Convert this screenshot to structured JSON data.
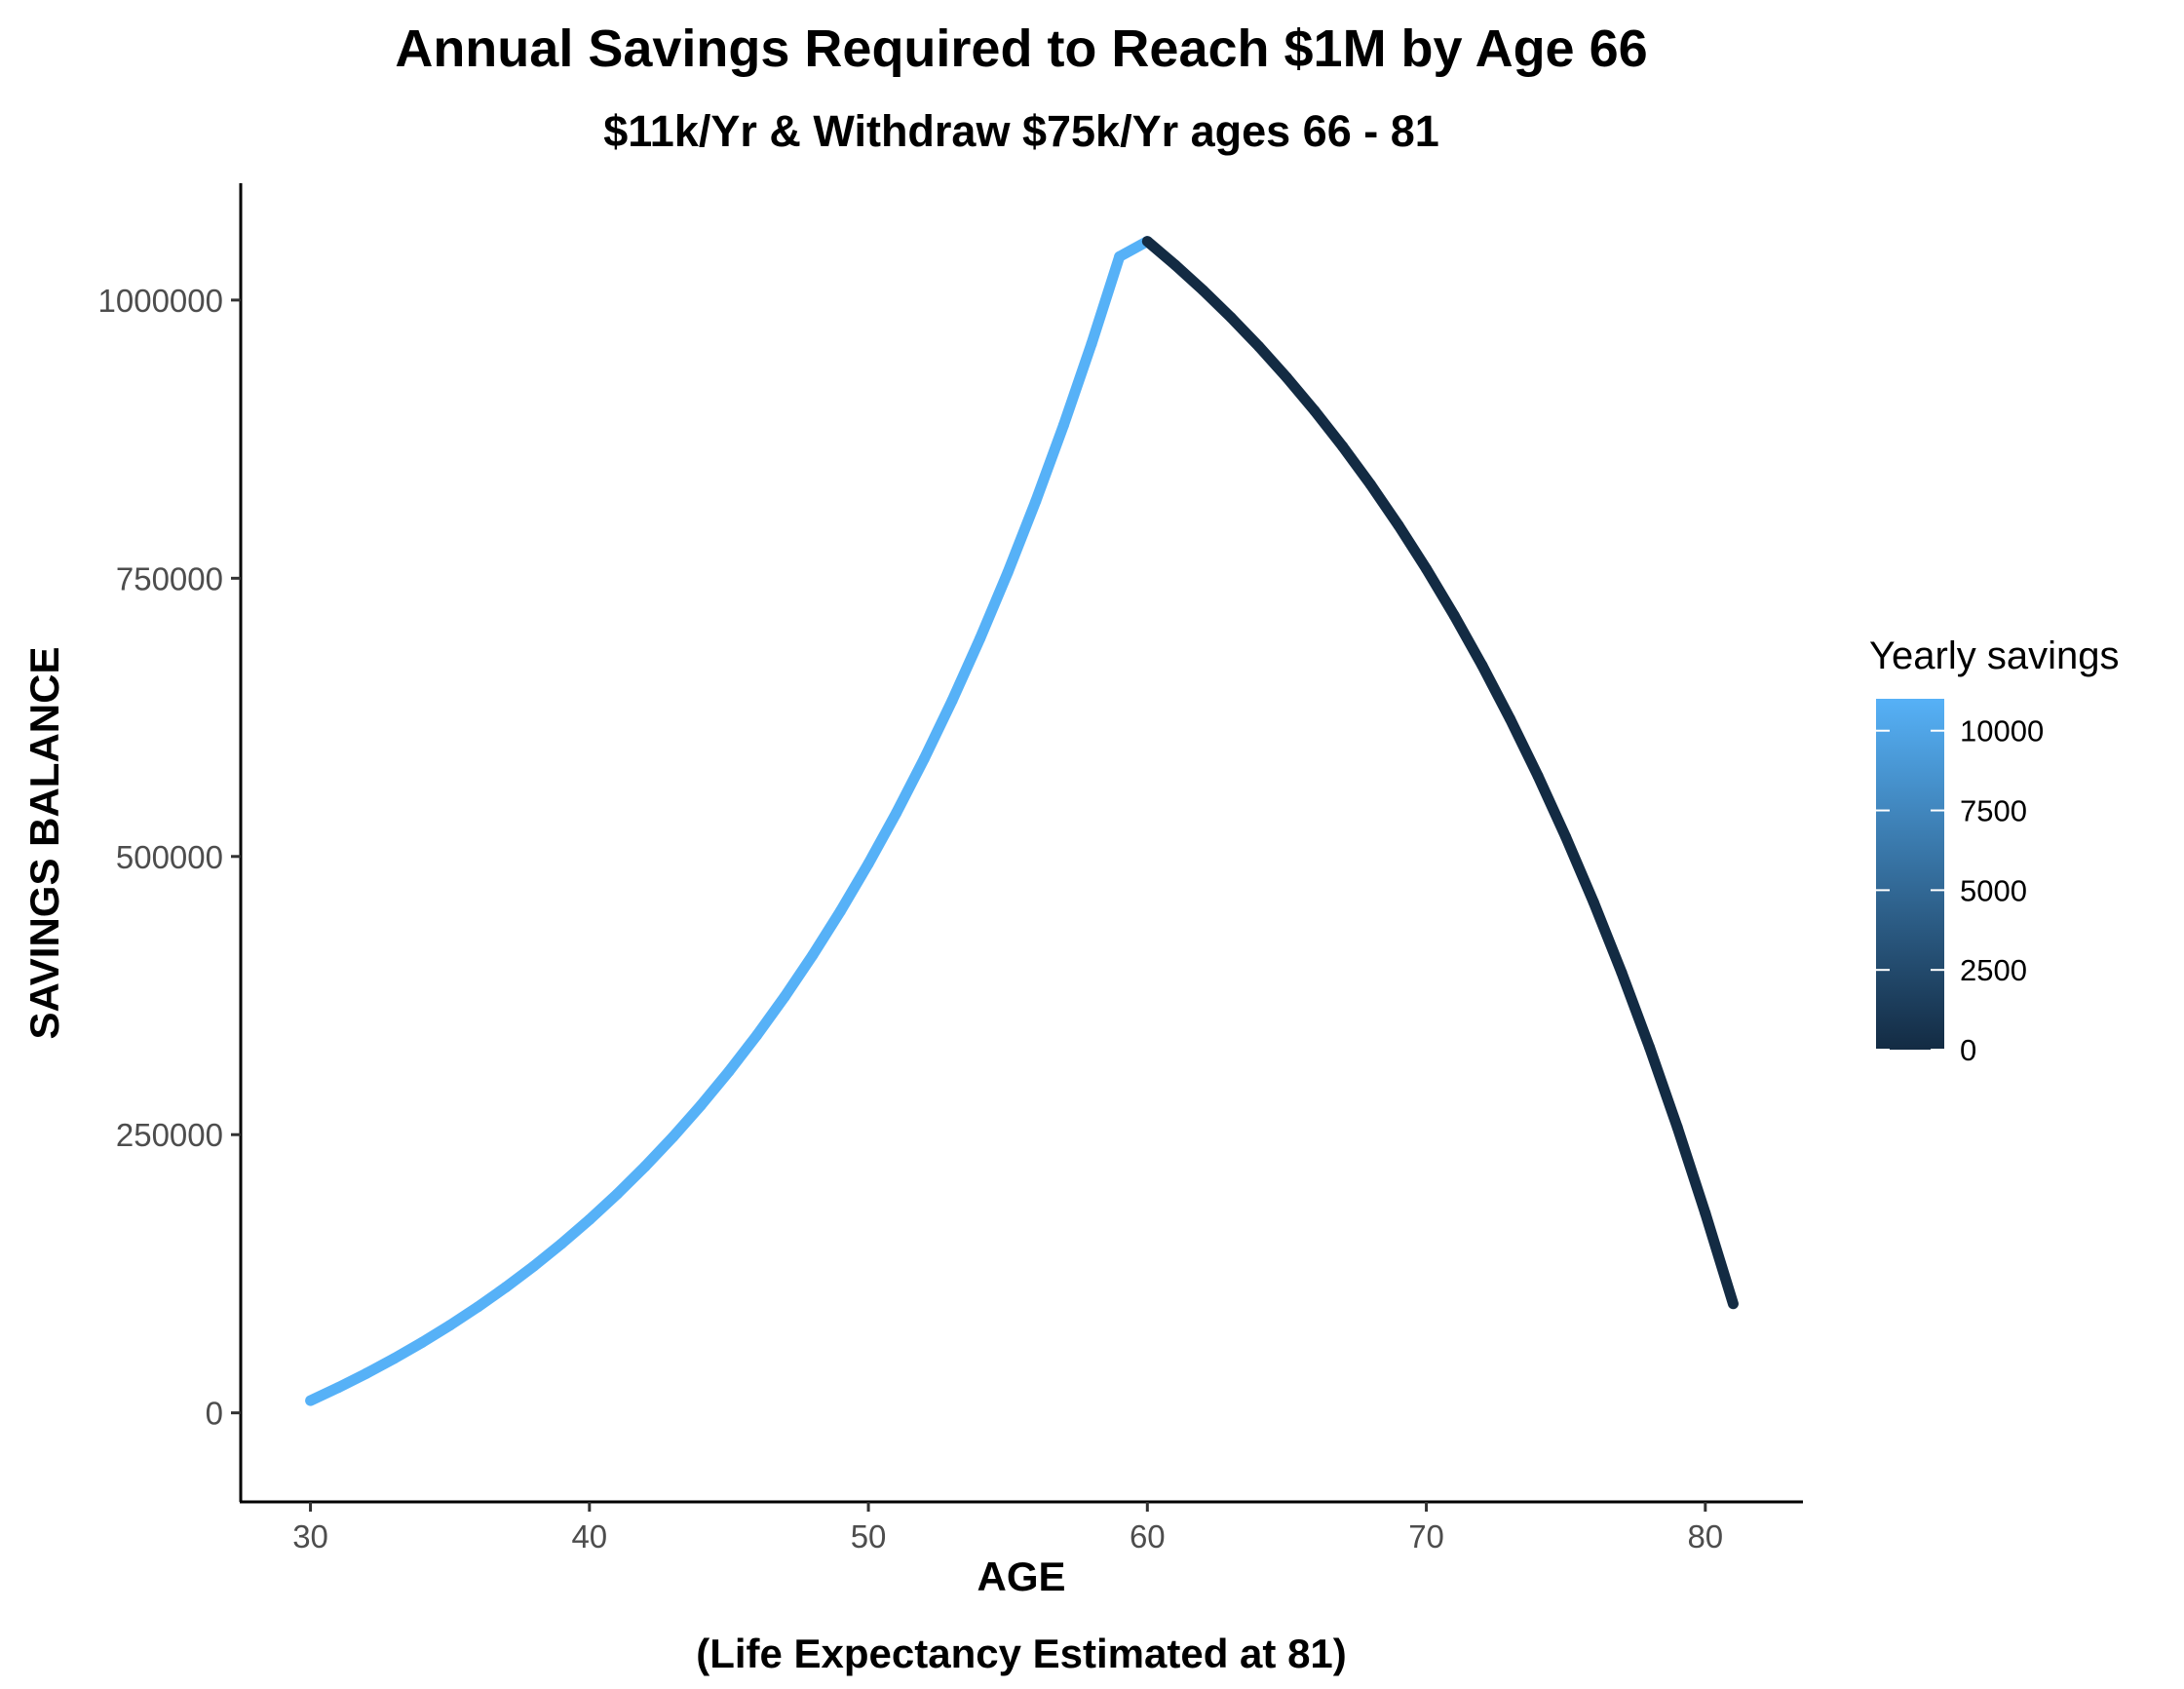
{
  "chart_data": {
    "type": "line",
    "title": "Annual Savings Required to Reach $1M by Age 66",
    "subtitle": "$11k/Yr & Withdraw $75k/Yr ages 66 - 81",
    "xlabel": "AGE",
    "xlabel_sub": "(Life Expectancy Estimated at 81)",
    "ylabel": "SAVINGS BALANCE",
    "xlim": [
      27.5,
      83.5
    ],
    "ylim": [
      -80000,
      1105000
    ],
    "x_ticks": [
      "30",
      "40",
      "50",
      "60",
      "70",
      "80"
    ],
    "x_tick_values": [
      30,
      40,
      50,
      60,
      70,
      80
    ],
    "y_ticks": [
      "0",
      "250000",
      "500000",
      "750000",
      "1000000"
    ],
    "y_tick_values": [
      0,
      250000,
      500000,
      750000,
      1000000
    ],
    "grid": false,
    "legend": {
      "title": "Yearly savings",
      "position": "right",
      "labels": [
        "10000",
        "7500",
        "5000",
        "2500",
        "0"
      ],
      "values": [
        10000,
        7500,
        5000,
        2500,
        0
      ],
      "range": [
        0,
        11000
      ],
      "color_low": "#132b43",
      "color_high": "#56b1f7"
    },
    "series": [
      {
        "x": [
          30,
          31,
          32,
          33,
          34,
          35,
          36,
          37,
          38,
          39,
          40,
          41,
          42,
          43,
          44,
          45,
          46,
          47,
          48,
          49,
          50,
          51,
          52,
          53,
          54,
          55,
          56,
          57,
          58,
          59,
          60,
          61,
          62,
          63,
          64,
          65,
          66,
          67,
          68,
          69,
          70,
          71,
          72,
          73,
          74,
          75,
          76,
          77,
          78,
          79,
          80,
          81
        ],
        "y": [
          11000,
          22770,
          35364,
          48839,
          63258,
          78686,
          95194,
          112857,
          131757,
          151980,
          173618,
          196771,
          221545,
          248053,
          276417,
          306766,
          339240,
          373987,
          411166,
          450948,
          493514,
          539060,
          587794,
          639940,
          695736,
          755437,
          819317,
          887669,
          960806,
          1039062,
          1052796,
          1031492,
          1008697,
          984306,
          958207,
          930282,
          900402,
          868430,
          834220,
          797616,
          758449,
          716540,
          671698,
          623717,
          572377,
          517443,
          458664,
          395770,
          328474,
          256467,
          179419,
          97978
        ],
        "color": [
          11000,
          11000,
          11000,
          11000,
          11000,
          11000,
          11000,
          11000,
          11000,
          11000,
          11000,
          11000,
          11000,
          11000,
          11000,
          11000,
          11000,
          11000,
          11000,
          11000,
          11000,
          11000,
          11000,
          11000,
          11000,
          11000,
          11000,
          11000,
          11000,
          11000,
          11000,
          0,
          0,
          0,
          0,
          0,
          0,
          0,
          0,
          0,
          0,
          0,
          0,
          0,
          0,
          0,
          0,
          0,
          0,
          0,
          0,
          0
        ]
      }
    ]
  }
}
